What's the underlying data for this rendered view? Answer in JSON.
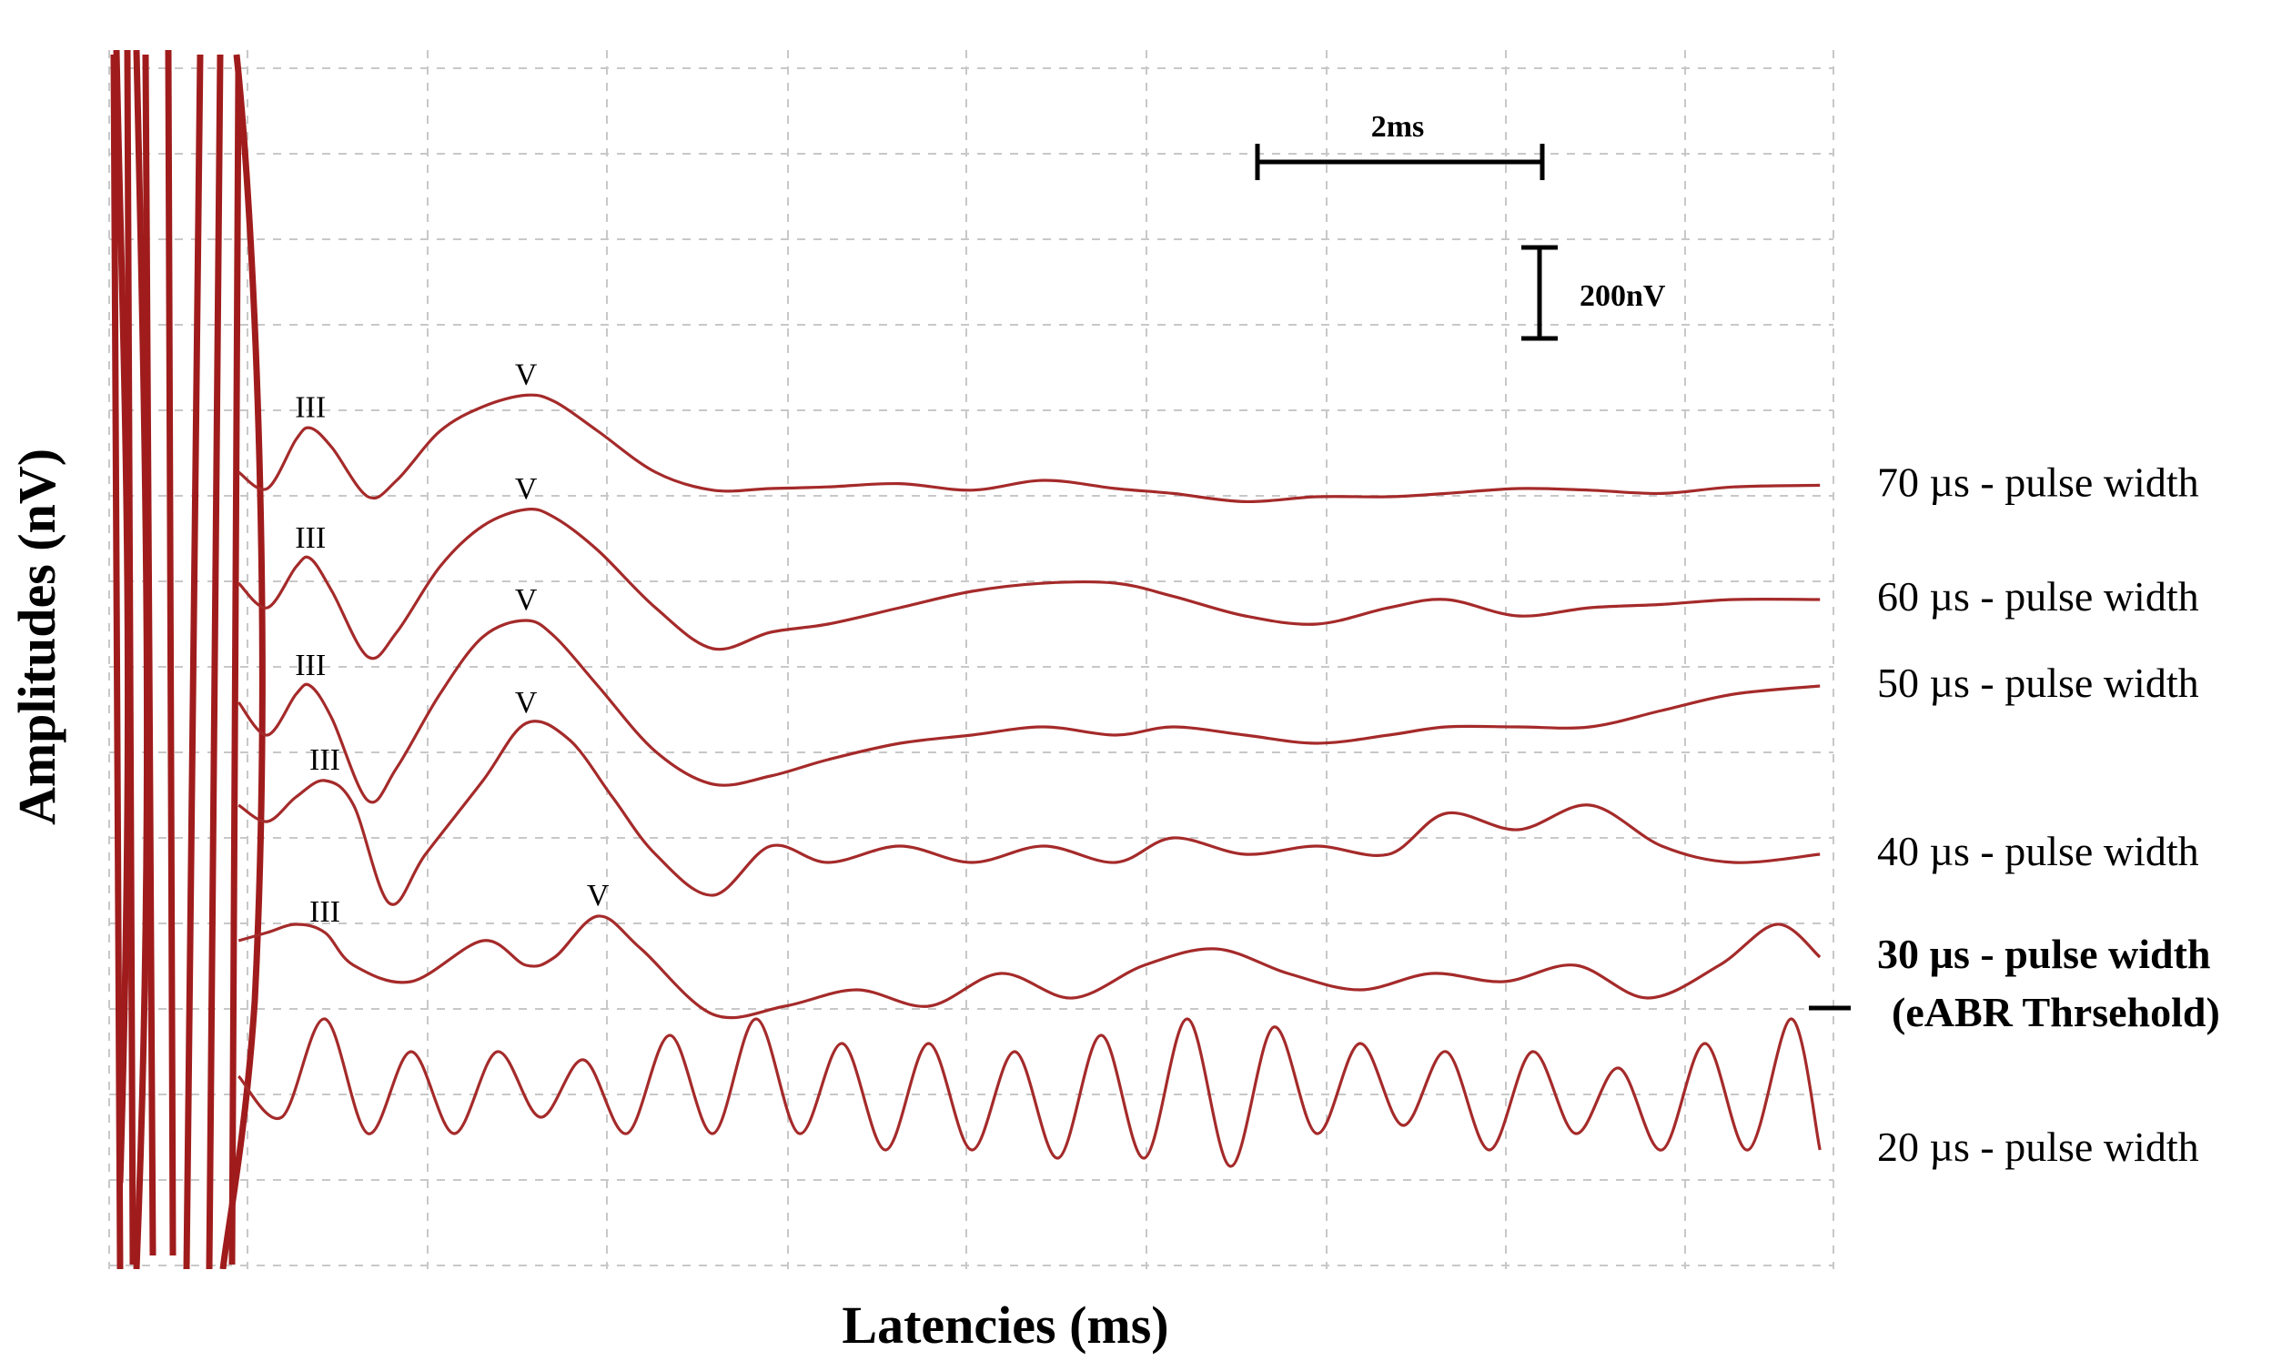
{
  "chart_data": {
    "type": "line",
    "title": "",
    "xlabel": "Latencies (ms)",
    "ylabel": "Amplitudes (nV)",
    "grid": true,
    "scale_bars": {
      "time": {
        "label": "2ms",
        "value_ms": 2
      },
      "amplitude": {
        "label": "200nV",
        "value_nv": 200
      }
    },
    "stimulus_artifact_color": "#a01c1c",
    "series": [
      {
        "name": "70 µs - pulse width",
        "color": "#a52a2a",
        "baseline": 0,
        "peaks": [
          {
            "label": "III",
            "x": 1.4,
            "y": 0.32
          },
          {
            "label": "V",
            "x": 2.9,
            "y": 0.52
          }
        ],
        "x": [
          0.9,
          1.1,
          1.3,
          1.4,
          1.55,
          1.8,
          2.0,
          2.3,
          2.6,
          2.9,
          3.1,
          3.4,
          3.8,
          4.2,
          4.6,
          5.0,
          5.5,
          6.0,
          6.5,
          7.0,
          7.4,
          7.9,
          8.4,
          8.9,
          9.3,
          9.8,
          10.3,
          10.8,
          11.3,
          11.9
        ],
        "y": [
          0.05,
          -0.05,
          0.25,
          0.32,
          0.2,
          -0.1,
          0.0,
          0.3,
          0.45,
          0.52,
          0.48,
          0.3,
          0.05,
          -0.06,
          -0.05,
          -0.04,
          -0.02,
          -0.06,
          0.0,
          -0.05,
          -0.08,
          -0.13,
          -0.1,
          -0.1,
          -0.08,
          -0.05,
          -0.06,
          -0.08,
          -0.04,
          -0.03
        ]
      },
      {
        "name": "60 µs - pulse width",
        "color": "#a52a2a",
        "baseline": -1,
        "peaks": [
          {
            "label": "III",
            "x": 1.4,
            "y": 0.25
          },
          {
            "label": "V",
            "x": 2.9,
            "y": 0.55
          }
        ],
        "x": [
          0.9,
          1.1,
          1.3,
          1.4,
          1.55,
          1.8,
          2.0,
          2.3,
          2.6,
          2.9,
          3.1,
          3.4,
          3.8,
          4.2,
          4.6,
          5.0,
          5.5,
          6.0,
          6.5,
          7.0,
          7.4,
          7.9,
          8.4,
          8.9,
          9.3,
          9.8,
          10.3,
          10.8,
          11.3,
          11.9
        ],
        "y": [
          0.1,
          -0.05,
          0.2,
          0.25,
          0.05,
          -0.35,
          -0.2,
          0.2,
          0.45,
          0.55,
          0.5,
          0.3,
          -0.05,
          -0.3,
          -0.2,
          -0.15,
          -0.05,
          0.05,
          0.1,
          0.1,
          0.02,
          -0.1,
          -0.15,
          -0.05,
          0.0,
          -0.1,
          -0.05,
          -0.03,
          0.0,
          0.0
        ]
      },
      {
        "name": "50 µs - pulse width",
        "color": "#a52a2a",
        "baseline": -2,
        "peaks": [
          {
            "label": "III",
            "x": 1.4,
            "y": 0.2
          },
          {
            "label": "V",
            "x": 2.9,
            "y": 0.6
          }
        ],
        "x": [
          0.9,
          1.1,
          1.3,
          1.4,
          1.55,
          1.8,
          2.0,
          2.3,
          2.6,
          2.9,
          3.1,
          3.4,
          3.8,
          4.2,
          4.6,
          5.0,
          5.5,
          6.0,
          6.5,
          7.0,
          7.4,
          7.9,
          8.4,
          8.9,
          9.3,
          9.8,
          10.3,
          10.8,
          11.3,
          11.9
        ],
        "y": [
          0.1,
          -0.1,
          0.15,
          0.2,
          0.0,
          -0.5,
          -0.3,
          0.15,
          0.5,
          0.6,
          0.5,
          0.2,
          -0.2,
          -0.4,
          -0.35,
          -0.25,
          -0.15,
          -0.1,
          -0.05,
          -0.1,
          -0.05,
          -0.1,
          -0.15,
          -0.1,
          -0.05,
          -0.05,
          -0.05,
          0.05,
          0.15,
          0.2
        ]
      },
      {
        "name": "40 µs - pulse width",
        "color": "#a52a2a",
        "baseline": -3,
        "peaks": [
          {
            "label": "III",
            "x": 1.5,
            "y": 0.35
          },
          {
            "label": "V",
            "x": 2.9,
            "y": 0.7
          }
        ],
        "x": [
          0.9,
          1.1,
          1.3,
          1.5,
          1.7,
          1.95,
          2.2,
          2.6,
          2.9,
          3.2,
          3.5,
          3.8,
          4.2,
          4.6,
          5.0,
          5.5,
          6.0,
          6.5,
          7.0,
          7.4,
          7.9,
          8.4,
          8.9,
          9.3,
          9.8,
          10.3,
          10.8,
          11.3,
          11.9
        ],
        "y": [
          0.2,
          0.1,
          0.25,
          0.35,
          0.2,
          -0.4,
          -0.1,
          0.35,
          0.7,
          0.6,
          0.25,
          -0.1,
          -0.35,
          -0.05,
          -0.15,
          -0.05,
          -0.15,
          -0.05,
          -0.15,
          0.0,
          -0.1,
          -0.05,
          -0.1,
          0.15,
          0.05,
          0.2,
          -0.05,
          -0.15,
          -0.1
        ]
      },
      {
        "name": "30 µs - pulse width (eABR Thrsehold)",
        "color": "#a52a2a",
        "baseline": -4,
        "bold_label": true,
        "peaks": [
          {
            "label": "III",
            "x": 1.5,
            "y": 0.15
          },
          {
            "label": "V",
            "x": 3.4,
            "y": 0.25
          }
        ],
        "x": [
          0.9,
          1.1,
          1.3,
          1.5,
          1.7,
          2.1,
          2.6,
          2.9,
          3.1,
          3.4,
          3.7,
          4.2,
          4.7,
          5.2,
          5.7,
          6.2,
          6.7,
          7.2,
          7.7,
          8.2,
          8.7,
          9.2,
          9.7,
          10.2,
          10.7,
          11.2,
          11.6,
          11.9
        ],
        "y": [
          0.1,
          0.15,
          0.2,
          0.15,
          -0.05,
          -0.15,
          0.1,
          -0.05,
          0.0,
          0.25,
          0.05,
          -0.35,
          -0.3,
          -0.2,
          -0.3,
          -0.1,
          -0.25,
          -0.05,
          0.05,
          -0.1,
          -0.2,
          -0.1,
          -0.15,
          -0.05,
          -0.25,
          -0.05,
          0.2,
          0.0
        ]
      },
      {
        "name": "20 µs - pulse width",
        "color": "#a52a2a",
        "baseline": -5,
        "peaks": [],
        "x": [
          0.9,
          1.2,
          1.5,
          1.8,
          2.1,
          2.4,
          2.7,
          3.0,
          3.3,
          3.6,
          3.9,
          4.2,
          4.5,
          4.8,
          5.1,
          5.4,
          5.7,
          6.0,
          6.3,
          6.6,
          6.9,
          7.2,
          7.5,
          7.8,
          8.1,
          8.4,
          8.7,
          9.0,
          9.3,
          9.6,
          9.9,
          10.2,
          10.5,
          10.8,
          11.1,
          11.4,
          11.7,
          11.9
        ],
        "y": [
          0.0,
          -0.25,
          0.35,
          -0.35,
          0.15,
          -0.35,
          0.15,
          -0.25,
          0.1,
          -0.35,
          0.25,
          -0.35,
          0.35,
          -0.35,
          0.2,
          -0.45,
          0.2,
          -0.45,
          0.15,
          -0.5,
          0.25,
          -0.5,
          0.35,
          -0.55,
          0.3,
          -0.35,
          0.2,
          -0.3,
          0.15,
          -0.45,
          0.15,
          -0.35,
          0.05,
          -0.45,
          0.2,
          -0.45,
          0.35,
          -0.45
        ]
      }
    ]
  }
}
